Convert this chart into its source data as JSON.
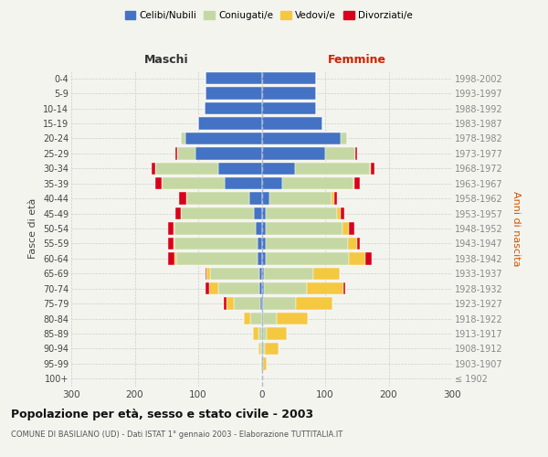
{
  "age_groups": [
    "100+",
    "95-99",
    "90-94",
    "85-89",
    "80-84",
    "75-79",
    "70-74",
    "65-69",
    "60-64",
    "55-59",
    "50-54",
    "45-49",
    "40-44",
    "35-39",
    "30-34",
    "25-29",
    "20-24",
    "15-19",
    "10-14",
    "5-9",
    "0-4"
  ],
  "birth_years": [
    "≤ 1902",
    "1903-1907",
    "1908-1912",
    "1913-1917",
    "1918-1922",
    "1923-1927",
    "1928-1932",
    "1933-1937",
    "1938-1942",
    "1943-1947",
    "1948-1952",
    "1953-1957",
    "1958-1962",
    "1963-1967",
    "1968-1972",
    "1973-1977",
    "1978-1982",
    "1983-1987",
    "1988-1992",
    "1993-1997",
    "1998-2002"
  ],
  "males": {
    "celibi": [
      1,
      1,
      0,
      0,
      0,
      2,
      3,
      3,
      7,
      7,
      10,
      12,
      20,
      58,
      68,
      105,
      120,
      100,
      90,
      88,
      88
    ],
    "coniugati": [
      0,
      0,
      2,
      5,
      18,
      42,
      65,
      78,
      128,
      130,
      128,
      115,
      98,
      100,
      100,
      28,
      8,
      0,
      0,
      0,
      0
    ],
    "vedovi": [
      0,
      0,
      3,
      8,
      10,
      12,
      15,
      6,
      3,
      2,
      1,
      0,
      0,
      0,
      0,
      0,
      0,
      0,
      0,
      0,
      0
    ],
    "divorziati": [
      0,
      0,
      0,
      0,
      0,
      3,
      6,
      2,
      9,
      8,
      9,
      9,
      12,
      9,
      5,
      3,
      0,
      0,
      0,
      0,
      0
    ]
  },
  "females": {
    "nubili": [
      0,
      2,
      2,
      2,
      2,
      2,
      3,
      3,
      6,
      6,
      6,
      6,
      12,
      32,
      52,
      100,
      125,
      95,
      85,
      85,
      85
    ],
    "coniugate": [
      0,
      0,
      3,
      6,
      22,
      52,
      68,
      78,
      132,
      130,
      122,
      112,
      98,
      112,
      118,
      48,
      10,
      0,
      0,
      0,
      0
    ],
    "vedove": [
      0,
      6,
      22,
      32,
      48,
      58,
      58,
      42,
      26,
      14,
      9,
      6,
      4,
      2,
      2,
      0,
      0,
      0,
      0,
      0,
      0
    ],
    "divorziate": [
      0,
      0,
      0,
      0,
      0,
      0,
      2,
      0,
      9,
      5,
      9,
      6,
      4,
      9,
      5,
      3,
      0,
      0,
      0,
      0,
      0
    ]
  },
  "colors": {
    "celibi": "#4472C4",
    "coniugati": "#c5d8a4",
    "vedovi": "#f5c842",
    "divorziati": "#d9001b"
  },
  "xlim": 300,
  "title": "Popolazione per età, sesso e stato civile - 2003",
  "subtitle": "COMUNE DI BASILIANO (UD) - Dati ISTAT 1° gennaio 2003 - Elaborazione TUTTITALIA.IT",
  "ylabel_left": "Fasce di età",
  "ylabel_right": "Anni di nascita",
  "xlabel_maschi": "Maschi",
  "xlabel_femmine": "Femmine",
  "bg_color": "#f4f4ef",
  "bar_height": 0.82,
  "grid_color": "#cccccc",
  "legend_labels": [
    "Celibi/Nubili",
    "Coniugati/e",
    "Vedovi/e",
    "Divorziati/e"
  ]
}
